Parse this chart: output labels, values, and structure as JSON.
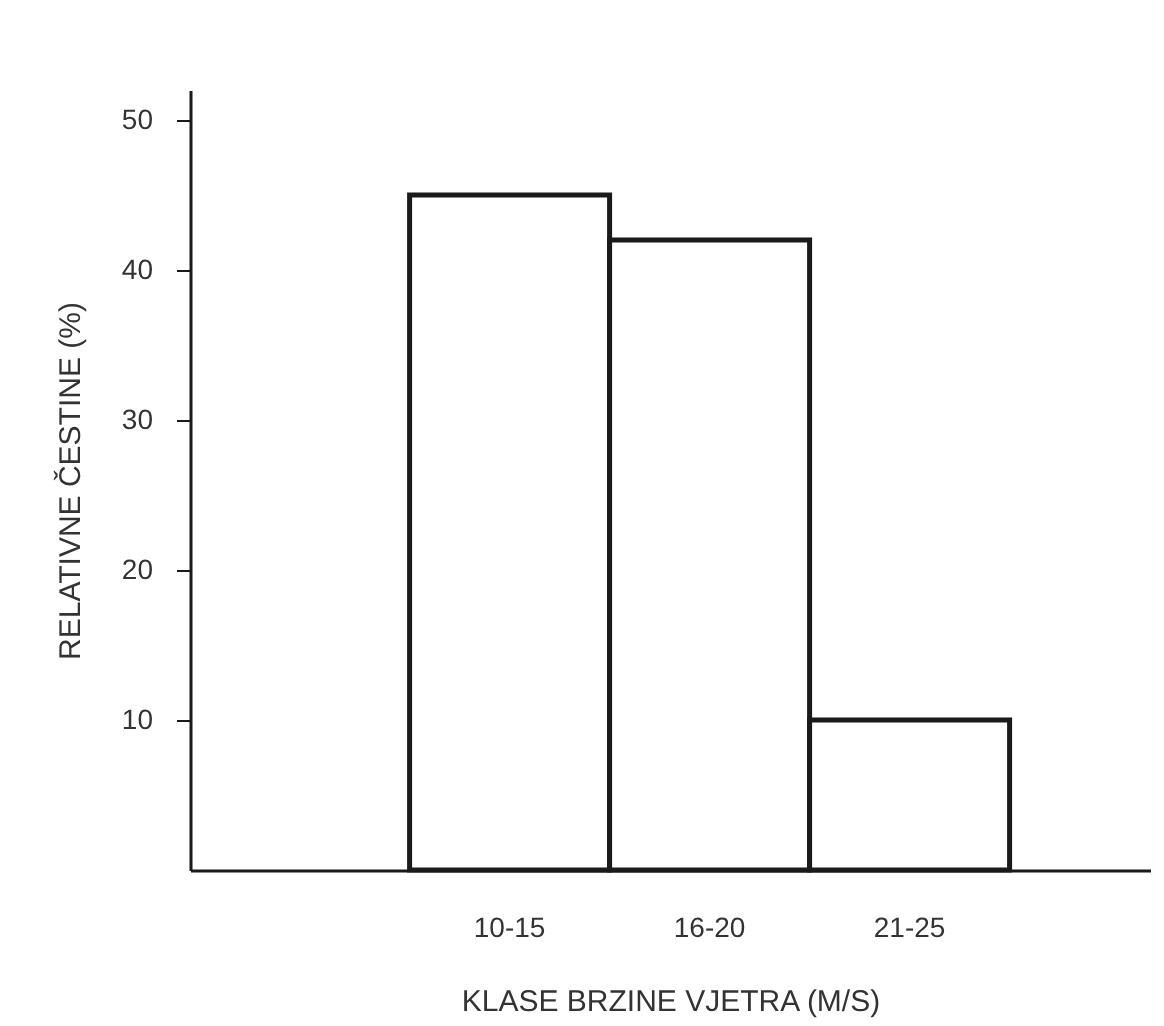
{
  "chart_data": {
    "type": "bar",
    "xlabel": "KLASE BRZINE VJETRA (M/S)",
    "ylabel": "RELATIVNE ČESTINE (%)",
    "categories": [
      "10-15",
      "16-20",
      "21-25"
    ],
    "values": [
      45,
      42,
      10
    ],
    "color": "#ffffff",
    "ylim": [
      0,
      52
    ],
    "yticks": [
      10,
      20,
      30,
      40,
      50
    ],
    "grid": false,
    "legend": false
  }
}
